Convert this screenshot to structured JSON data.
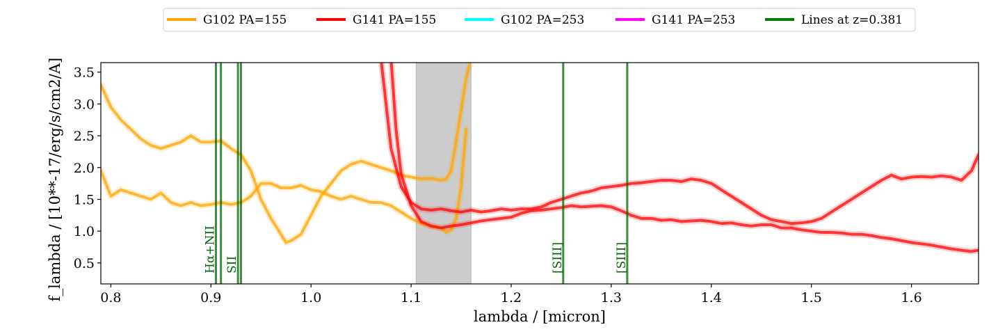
{
  "chart_data": {
    "type": "line",
    "title": "",
    "xlabel": "lambda / [micron]",
    "ylabel": "f_lambda / [10**-17/erg/s/cm2/A]",
    "xlim": [
      0.79,
      1.667
    ],
    "ylim": [
      0.17,
      3.65
    ],
    "grid": false,
    "legend_position": "top-center",
    "x_ticks": [
      0.8,
      0.9,
      1.0,
      1.1,
      1.2,
      1.3,
      1.4,
      1.5,
      1.6
    ],
    "x_tick_labels": [
      "0.8",
      "0.9",
      "1.0",
      "1.1",
      "1.2",
      "1.3",
      "1.4",
      "1.5",
      "1.6"
    ],
    "y_ticks": [
      0.5,
      1.0,
      1.5,
      2.0,
      2.5,
      3.0,
      3.5
    ],
    "y_tick_labels": [
      "0.5",
      "1.0",
      "1.5",
      "2.0",
      "2.5",
      "3.0",
      "3.5"
    ],
    "legend": [
      {
        "label": "G102 PA=155",
        "color": "#ffa500"
      },
      {
        "label": "G141 PA=155",
        "color": "#ff0000"
      },
      {
        "label": "G102 PA=253",
        "color": "#00ffff"
      },
      {
        "label": "G141 PA=253",
        "color": "#ff00ff"
      },
      {
        "label": "Lines at z=0.381",
        "color": "#008000"
      }
    ],
    "shaded_region": {
      "x0": 1.105,
      "x1": 1.16,
      "color": "#999999"
    },
    "spectral_lines": [
      {
        "x": 0.905,
        "label": "Hα+NII"
      },
      {
        "x": 0.91,
        "label": ""
      },
      {
        "x": 0.927,
        "label": "SII"
      },
      {
        "x": 0.93,
        "label": ""
      },
      {
        "x": 1.252,
        "label": "[SIII]"
      },
      {
        "x": 1.316,
        "label": "[SIII]"
      }
    ],
    "series": [
      {
        "name": "G102 PA=155",
        "color": "#ffa500",
        "x": [
          0.79,
          0.8,
          0.81,
          0.82,
          0.83,
          0.84,
          0.85,
          0.86,
          0.87,
          0.88,
          0.89,
          0.9,
          0.91,
          0.92,
          0.93,
          0.94,
          0.95,
          0.96,
          0.97,
          0.975,
          0.98,
          0.99,
          1.0,
          1.01,
          1.02,
          1.03,
          1.04,
          1.05,
          1.06,
          1.07,
          1.08,
          1.09,
          1.1,
          1.11,
          1.12,
          1.13,
          1.135,
          1.14,
          1.145,
          1.15,
          1.155,
          1.16
        ],
        "y": [
          3.3,
          2.95,
          2.75,
          2.6,
          2.45,
          2.35,
          2.3,
          2.35,
          2.4,
          2.5,
          2.4,
          2.4,
          2.42,
          2.3,
          2.2,
          1.95,
          1.5,
          1.2,
          0.95,
          0.82,
          0.85,
          0.95,
          1.25,
          1.55,
          1.75,
          1.95,
          2.05,
          2.1,
          2.05,
          2.0,
          1.95,
          1.88,
          1.85,
          1.82,
          1.83,
          1.8,
          1.82,
          1.95,
          2.4,
          2.9,
          3.4,
          3.7
        ]
      },
      {
        "name": "G102 PA=155",
        "color": "#ffa500",
        "x": [
          0.79,
          0.8,
          0.81,
          0.82,
          0.83,
          0.84,
          0.85,
          0.86,
          0.87,
          0.88,
          0.89,
          0.9,
          0.91,
          0.92,
          0.93,
          0.94,
          0.95,
          0.96,
          0.97,
          0.98,
          0.99,
          1.0,
          1.01,
          1.02,
          1.03,
          1.04,
          1.05,
          1.06,
          1.07,
          1.08,
          1.09,
          1.1,
          1.11,
          1.12,
          1.13,
          1.135,
          1.14,
          1.145,
          1.15,
          1.155
        ],
        "y": [
          1.95,
          1.55,
          1.65,
          1.6,
          1.55,
          1.5,
          1.6,
          1.45,
          1.4,
          1.45,
          1.4,
          1.42,
          1.45,
          1.42,
          1.45,
          1.55,
          1.75,
          1.75,
          1.68,
          1.68,
          1.72,
          1.65,
          1.62,
          1.55,
          1.5,
          1.55,
          1.5,
          1.45,
          1.45,
          1.4,
          1.3,
          1.2,
          1.12,
          1.08,
          1.05,
          0.98,
          1.02,
          1.2,
          1.7,
          2.6
        ]
      },
      {
        "name": "G141 PA=155",
        "color": "#ff0000",
        "x": [
          1.07,
          1.075,
          1.08,
          1.09,
          1.1,
          1.11,
          1.12,
          1.13,
          1.14,
          1.15,
          1.16,
          1.17,
          1.18,
          1.19,
          1.2,
          1.21,
          1.22,
          1.23,
          1.24,
          1.25,
          1.26,
          1.27,
          1.28,
          1.29,
          1.3,
          1.31,
          1.32,
          1.33,
          1.34,
          1.35,
          1.36,
          1.37,
          1.38,
          1.39,
          1.4,
          1.41,
          1.42,
          1.43,
          1.44,
          1.45,
          1.46,
          1.47,
          1.48,
          1.49,
          1.5,
          1.51,
          1.52,
          1.53,
          1.54,
          1.55,
          1.56,
          1.57,
          1.58,
          1.59,
          1.6,
          1.61,
          1.62,
          1.63,
          1.64,
          1.65,
          1.66,
          1.667
        ],
        "y": [
          3.7,
          3.0,
          2.3,
          1.7,
          1.45,
          1.35,
          1.33,
          1.35,
          1.32,
          1.3,
          1.33,
          1.3,
          1.32,
          1.35,
          1.33,
          1.35,
          1.35,
          1.38,
          1.45,
          1.5,
          1.55,
          1.6,
          1.63,
          1.68,
          1.7,
          1.72,
          1.75,
          1.76,
          1.78,
          1.8,
          1.8,
          1.78,
          1.82,
          1.8,
          1.75,
          1.65,
          1.55,
          1.45,
          1.35,
          1.25,
          1.18,
          1.15,
          1.12,
          1.13,
          1.15,
          1.2,
          1.3,
          1.4,
          1.5,
          1.6,
          1.7,
          1.8,
          1.88,
          1.82,
          1.85,
          1.86,
          1.85,
          1.87,
          1.85,
          1.8,
          1.95,
          2.2
        ]
      },
      {
        "name": "G141 PA=155",
        "color": "#ff0000",
        "x": [
          1.08,
          1.085,
          1.09,
          1.1,
          1.11,
          1.12,
          1.13,
          1.14,
          1.15,
          1.16,
          1.17,
          1.18,
          1.19,
          1.2,
          1.21,
          1.22,
          1.23,
          1.24,
          1.25,
          1.26,
          1.27,
          1.28,
          1.29,
          1.3,
          1.31,
          1.32,
          1.33,
          1.34,
          1.35,
          1.36,
          1.37,
          1.38,
          1.39,
          1.4,
          1.41,
          1.42,
          1.43,
          1.44,
          1.45,
          1.46,
          1.47,
          1.48,
          1.49,
          1.5,
          1.51,
          1.52,
          1.53,
          1.54,
          1.55,
          1.56,
          1.57,
          1.58,
          1.59,
          1.6,
          1.61,
          1.62,
          1.63,
          1.64,
          1.65,
          1.66,
          1.667
        ],
        "y": [
          3.7,
          2.6,
          1.9,
          1.4,
          1.15,
          1.08,
          1.05,
          1.08,
          1.1,
          1.13,
          1.16,
          1.18,
          1.2,
          1.22,
          1.28,
          1.32,
          1.33,
          1.35,
          1.37,
          1.4,
          1.38,
          1.39,
          1.4,
          1.38,
          1.32,
          1.25,
          1.2,
          1.2,
          1.17,
          1.18,
          1.15,
          1.16,
          1.17,
          1.15,
          1.12,
          1.13,
          1.1,
          1.08,
          1.1,
          1.1,
          1.05,
          1.05,
          1.02,
          1.0,
          0.98,
          0.98,
          0.97,
          0.95,
          0.95,
          0.93,
          0.9,
          0.88,
          0.85,
          0.82,
          0.8,
          0.78,
          0.75,
          0.72,
          0.7,
          0.68,
          0.7
        ]
      }
    ]
  }
}
